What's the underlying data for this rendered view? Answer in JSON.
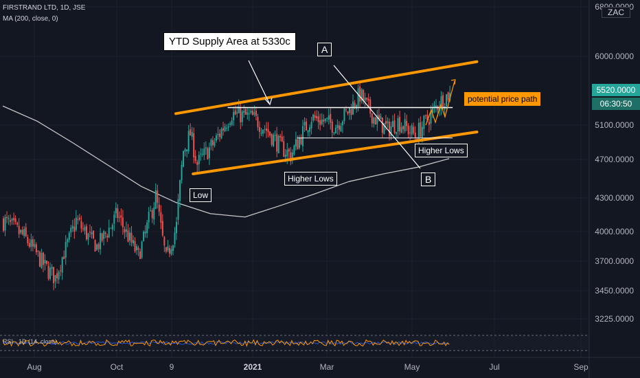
{
  "header": {
    "symbol_line": "FIRSTRAND LTD, 1D, JSE",
    "indicator_line": "MA (200, close, 0)",
    "currency": "ZAC"
  },
  "annotations": {
    "supply_area": "YTD Supply Area at 5330c",
    "label_a": "A",
    "label_b": "B",
    "higher_lows_1": "Higher Lows",
    "higher_lows_2": "Higher Lows",
    "low": "Low",
    "potential_path": "potential price path"
  },
  "price_tags": {
    "last_price": "5520.0000",
    "countdown": "06:30:50"
  },
  "rsi": {
    "label": "RSI · 1D (14, close)"
  },
  "colors": {
    "background": "#131722",
    "up": "#26a69a",
    "down": "#ef5350",
    "channel": "#ff9800",
    "ma": "#c8c8c8",
    "rsi_line": "#ff9800"
  },
  "chart_data": {
    "type": "candlestick",
    "yticks": [
      {
        "label": "6800.0000",
        "value": 6800
      },
      {
        "label": "6000.0000",
        "value": 6000
      },
      {
        "label": "5100.0000",
        "value": 5100
      },
      {
        "label": "4700.0000",
        "value": 4700
      },
      {
        "label": "4300.0000",
        "value": 4300
      },
      {
        "label": "4000.0000",
        "value": 4000
      },
      {
        "label": "3700.0000",
        "value": 3700
      },
      {
        "label": "3450.0000",
        "value": 3450
      },
      {
        "label": "3225.0000",
        "value": 3225
      }
    ],
    "xticks": [
      {
        "label": "Aug",
        "bold": false
      },
      {
        "label": "Oct",
        "bold": false
      },
      {
        "label": "9",
        "bold": false
      },
      {
        "label": "2021",
        "bold": true
      },
      {
        "label": "Mar",
        "bold": false
      },
      {
        "label": "May",
        "bold": false
      },
      {
        "label": "Jul",
        "bold": false
      },
      {
        "label": "Sep",
        "bold": false
      }
    ],
    "candle_segments": [
      {
        "from": [
          0,
          4100
        ],
        "to": [
          12,
          3950
        ]
      },
      {
        "from": [
          12,
          3950
        ],
        "to": [
          24,
          3650
        ]
      },
      {
        "from": [
          24,
          3650
        ],
        "to": [
          30,
          3560
        ]
      },
      {
        "from": [
          30,
          3560
        ],
        "to": [
          42,
          4100
        ]
      },
      {
        "from": [
          42,
          4100
        ],
        "to": [
          54,
          3850
        ]
      },
      {
        "from": [
          54,
          3850
        ],
        "to": [
          66,
          4150
        ]
      },
      {
        "from": [
          66,
          4150
        ],
        "to": [
          78,
          3750
        ]
      },
      {
        "from": [
          78,
          3750
        ],
        "to": [
          88,
          4320
        ]
      },
      {
        "from": [
          88,
          4320
        ],
        "to": [
          94,
          3720
        ]
      },
      {
        "from": [
          94,
          3720
        ],
        "to": [
          100,
          4050
        ]
      },
      {
        "from": [
          100,
          4050
        ],
        "to": [
          104,
          4800
        ]
      },
      {
        "from": [
          104,
          4800
        ],
        "to": [
          108,
          5000
        ]
      },
      {
        "from": [
          108,
          5000
        ],
        "to": [
          112,
          4650
        ]
      },
      {
        "from": [
          112,
          4650
        ],
        "to": [
          122,
          4900
        ]
      },
      {
        "from": [
          122,
          4900
        ],
        "to": [
          132,
          5250
        ]
      },
      {
        "from": [
          132,
          5250
        ],
        "to": [
          144,
          5200
        ]
      },
      {
        "from": [
          144,
          5200
        ],
        "to": [
          152,
          5050
        ]
      },
      {
        "from": [
          152,
          5050
        ],
        "to": [
          160,
          4850
        ]
      },
      {
        "from": [
          160,
          4850
        ],
        "to": [
          166,
          4750
        ]
      },
      {
        "from": [
          166,
          4750
        ],
        "to": [
          178,
          5200
        ]
      },
      {
        "from": [
          178,
          5200
        ],
        "to": [
          192,
          5100
        ]
      },
      {
        "from": [
          192,
          5100
        ],
        "to": [
          200,
          5300
        ]
      },
      {
        "from": [
          200,
          5300
        ],
        "to": [
          206,
          5500
        ]
      },
      {
        "from": [
          206,
          5500
        ],
        "to": [
          214,
          5200
        ]
      },
      {
        "from": [
          214,
          5200
        ],
        "to": [
          222,
          5050
        ]
      },
      {
        "from": [
          222,
          5050
        ],
        "to": [
          228,
          5150
        ]
      },
      {
        "from": [
          228,
          5150
        ],
        "to": [
          238,
          4980
        ]
      },
      {
        "from": [
          238,
          4980
        ],
        "to": [
          246,
          5200
        ]
      },
      {
        "from": [
          246,
          5200
        ],
        "to": [
          252,
          5400
        ]
      },
      {
        "from": [
          252,
          5400
        ],
        "to": [
          258,
          5520
        ]
      }
    ],
    "moving_average": [
      [
        0,
        5350
      ],
      [
        20,
        5150
      ],
      [
        40,
        4900
      ],
      [
        60,
        4650
      ],
      [
        80,
        4420
      ],
      [
        100,
        4260
      ],
      [
        120,
        4160
      ],
      [
        140,
        4130
      ],
      [
        160,
        4230
      ],
      [
        180,
        4340
      ],
      [
        200,
        4470
      ],
      [
        220,
        4550
      ],
      [
        240,
        4620
      ],
      [
        258,
        4710
      ]
    ],
    "channel_upper": {
      "from": [
        100,
        5250
      ],
      "to": [
        274,
        5930
      ]
    },
    "channel_lower": {
      "from": [
        110,
        4550
      ],
      "to": [
        274,
        5020
      ]
    },
    "supply_line": {
      "from": [
        130,
        5330
      ],
      "to": [
        260,
        5330
      ],
      "value": 5330
    },
    "support_line": {
      "from": [
        170,
        4950
      ],
      "to": [
        260,
        4950
      ],
      "value": 4950
    },
    "last_price": 5520
  }
}
